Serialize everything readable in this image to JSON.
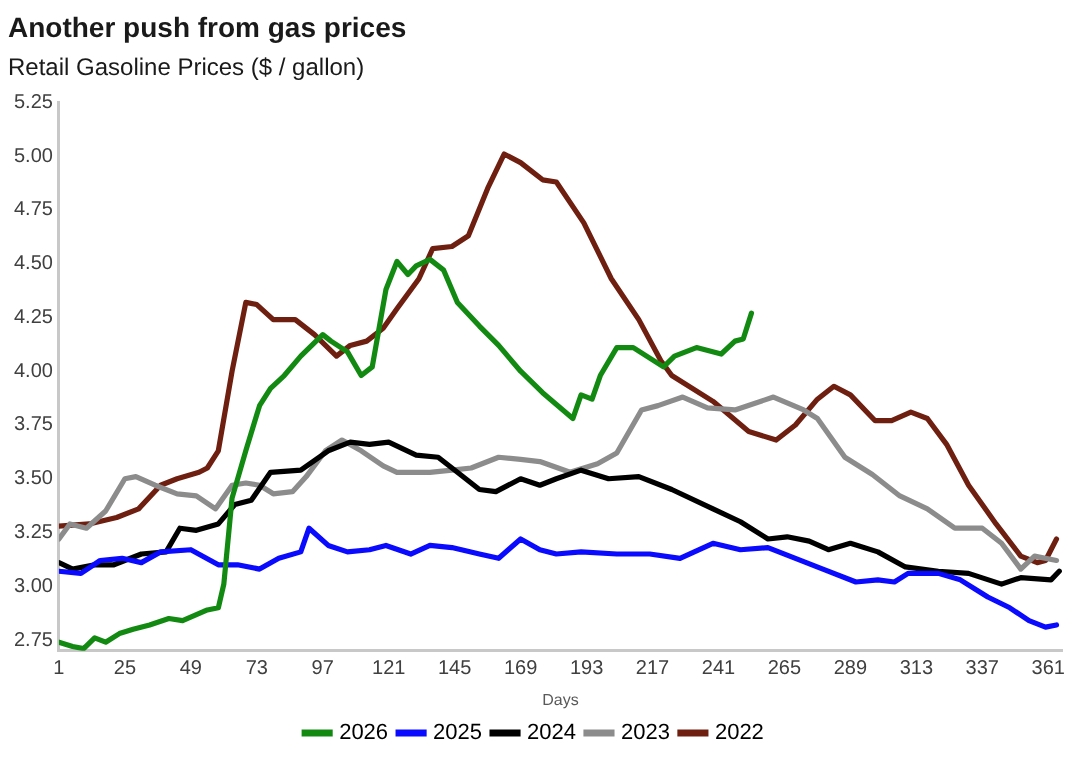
{
  "chart_data": {
    "type": "line",
    "title": "Another push from gas prices",
    "subtitle": "Retail Gasoline Prices ($ / gallon)",
    "xlabel": "Days",
    "xlim": [
      1,
      366
    ],
    "xticks": [
      1,
      25,
      49,
      73,
      97,
      121,
      145,
      169,
      193,
      217,
      241,
      265,
      289,
      313,
      337,
      361
    ],
    "ylim": [
      2.7,
      5.25
    ],
    "yticks": [
      2.75,
      {
        "value": 3,
        "label": "3.00"
      },
      3.25,
      {
        "value": 3.5,
        "label": "3.50"
      },
      3.75,
      {
        "value": 4,
        "label": "4.00"
      },
      4.25,
      {
        "value": 4.5,
        "label": "4.50"
      },
      4.75,
      {
        "value": 5,
        "label": "5.00"
      },
      5.25
    ],
    "grid": false,
    "legend": "bottom",
    "marker": "none",
    "line_style": "solid",
    "series": [
      {
        "name": "2026",
        "color": "#128a12",
        "x": [
          1,
          6,
          10,
          14,
          18,
          23,
          28,
          34,
          41,
          46,
          55,
          59,
          61,
          64,
          69,
          74,
          78,
          83,
          89,
          97,
          100,
          106,
          111,
          115,
          120,
          124,
          128,
          131,
          136,
          141,
          146,
          154,
          161,
          169,
          177,
          188,
          191,
          195,
          198,
          204,
          210,
          221,
          225,
          233,
          242,
          247,
          250,
          253
        ],
        "values": [
          2.74,
          2.72,
          2.71,
          2.76,
          2.74,
          2.78,
          2.8,
          2.82,
          2.85,
          2.84,
          2.89,
          2.9,
          3.01,
          3.41,
          3.63,
          3.84,
          3.92,
          3.98,
          4.07,
          4.17,
          4.14,
          4.09,
          3.98,
          4.02,
          4.38,
          4.51,
          4.45,
          4.49,
          4.52,
          4.47,
          4.32,
          4.21,
          4.12,
          4.0,
          3.9,
          3.78,
          3.89,
          3.87,
          3.98,
          4.11,
          4.11,
          4.02,
          4.07,
          4.11,
          4.08,
          4.14,
          4.15,
          4.27
        ]
      },
      {
        "name": "2025",
        "color": "#0a0aff",
        "x": [
          1,
          9,
          16,
          24,
          31,
          38,
          49,
          59,
          66,
          74,
          81,
          89,
          92,
          99,
          106,
          114,
          120,
          129,
          136,
          144,
          154,
          161,
          169,
          176,
          182,
          191,
          204,
          216,
          227,
          239,
          249,
          259,
          269,
          279,
          291,
          299,
          305,
          310,
          321,
          329,
          339,
          347,
          354,
          360,
          364
        ],
        "values": [
          3.07,
          3.06,
          3.12,
          3.13,
          3.11,
          3.16,
          3.17,
          3.1,
          3.1,
          3.08,
          3.13,
          3.16,
          3.27,
          3.19,
          3.16,
          3.17,
          3.19,
          3.15,
          3.19,
          3.18,
          3.15,
          3.13,
          3.22,
          3.17,
          3.15,
          3.16,
          3.15,
          3.15,
          3.13,
          3.2,
          3.17,
          3.18,
          3.13,
          3.08,
          3.02,
          3.03,
          3.02,
          3.06,
          3.06,
          3.03,
          2.95,
          2.9,
          2.84,
          2.81,
          2.82
        ]
      },
      {
        "name": "2024",
        "color": "#000000",
        "x": [
          1,
          6,
          14,
          21,
          31,
          40,
          45,
          51,
          59,
          65,
          71,
          78,
          89,
          99,
          107,
          114,
          121,
          131,
          139,
          146,
          154,
          160,
          169,
          176,
          182,
          191,
          201,
          212,
          224,
          239,
          249,
          259,
          266,
          274,
          281,
          289,
          299,
          309,
          321,
          332,
          344,
          351,
          362,
          365
        ],
        "values": [
          3.11,
          3.08,
          3.1,
          3.1,
          3.15,
          3.16,
          3.27,
          3.26,
          3.29,
          3.38,
          3.4,
          3.53,
          3.54,
          3.63,
          3.67,
          3.66,
          3.67,
          3.61,
          3.6,
          3.53,
          3.45,
          3.44,
          3.5,
          3.47,
          3.5,
          3.54,
          3.5,
          3.51,
          3.45,
          3.36,
          3.3,
          3.22,
          3.23,
          3.21,
          3.17,
          3.2,
          3.16,
          3.09,
          3.07,
          3.06,
          3.01,
          3.04,
          3.03,
          3.07
        ]
      },
      {
        "name": "2023",
        "color": "#8c8c8c",
        "x": [
          1,
          5,
          11,
          18,
          25,
          29,
          36,
          44,
          51,
          58,
          64,
          69,
          74,
          79,
          86,
          91,
          98,
          104,
          111,
          119,
          124,
          129,
          136,
          144,
          151,
          161,
          169,
          176,
          187,
          197,
          204,
          213,
          219,
          228,
          237,
          247,
          261,
          272,
          277,
          287,
          297,
          307,
          317,
          327,
          337,
          344,
          351,
          356,
          364
        ],
        "values": [
          3.22,
          3.29,
          3.27,
          3.35,
          3.5,
          3.51,
          3.47,
          3.43,
          3.42,
          3.36,
          3.47,
          3.48,
          3.47,
          3.43,
          3.44,
          3.51,
          3.63,
          3.68,
          3.63,
          3.56,
          3.53,
          3.53,
          3.53,
          3.54,
          3.55,
          3.6,
          3.59,
          3.58,
          3.53,
          3.57,
          3.62,
          3.82,
          3.84,
          3.88,
          3.83,
          3.82,
          3.88,
          3.82,
          3.78,
          3.6,
          3.52,
          3.42,
          3.36,
          3.27,
          3.27,
          3.2,
          3.08,
          3.14,
          3.12
        ]
      },
      {
        "name": "2022",
        "color": "#6e1f10",
        "x": [
          1,
          12,
          22,
          30,
          38,
          44,
          52,
          55,
          59,
          64,
          69,
          73,
          79,
          87,
          94,
          102,
          107,
          113,
          119,
          124,
          132,
          137,
          144,
          150,
          157,
          163,
          169,
          177,
          182,
          192,
          202,
          212,
          220,
          224,
          239,
          252,
          262,
          269,
          277,
          283,
          289,
          298,
          304,
          311,
          317,
          324,
          332,
          342,
          351,
          357,
          360,
          364
        ],
        "values": [
          3.28,
          3.29,
          3.32,
          3.36,
          3.47,
          3.5,
          3.53,
          3.55,
          3.63,
          4.0,
          4.32,
          4.31,
          4.24,
          4.24,
          4.17,
          4.07,
          4.12,
          4.14,
          4.2,
          4.29,
          4.43,
          4.57,
          4.58,
          4.63,
          4.85,
          5.01,
          4.97,
          4.89,
          4.88,
          4.69,
          4.43,
          4.24,
          4.05,
          3.98,
          3.86,
          3.72,
          3.68,
          3.75,
          3.87,
          3.93,
          3.89,
          3.77,
          3.77,
          3.81,
          3.78,
          3.66,
          3.47,
          3.29,
          3.14,
          3.11,
          3.12,
          3.22
        ]
      }
    ]
  }
}
